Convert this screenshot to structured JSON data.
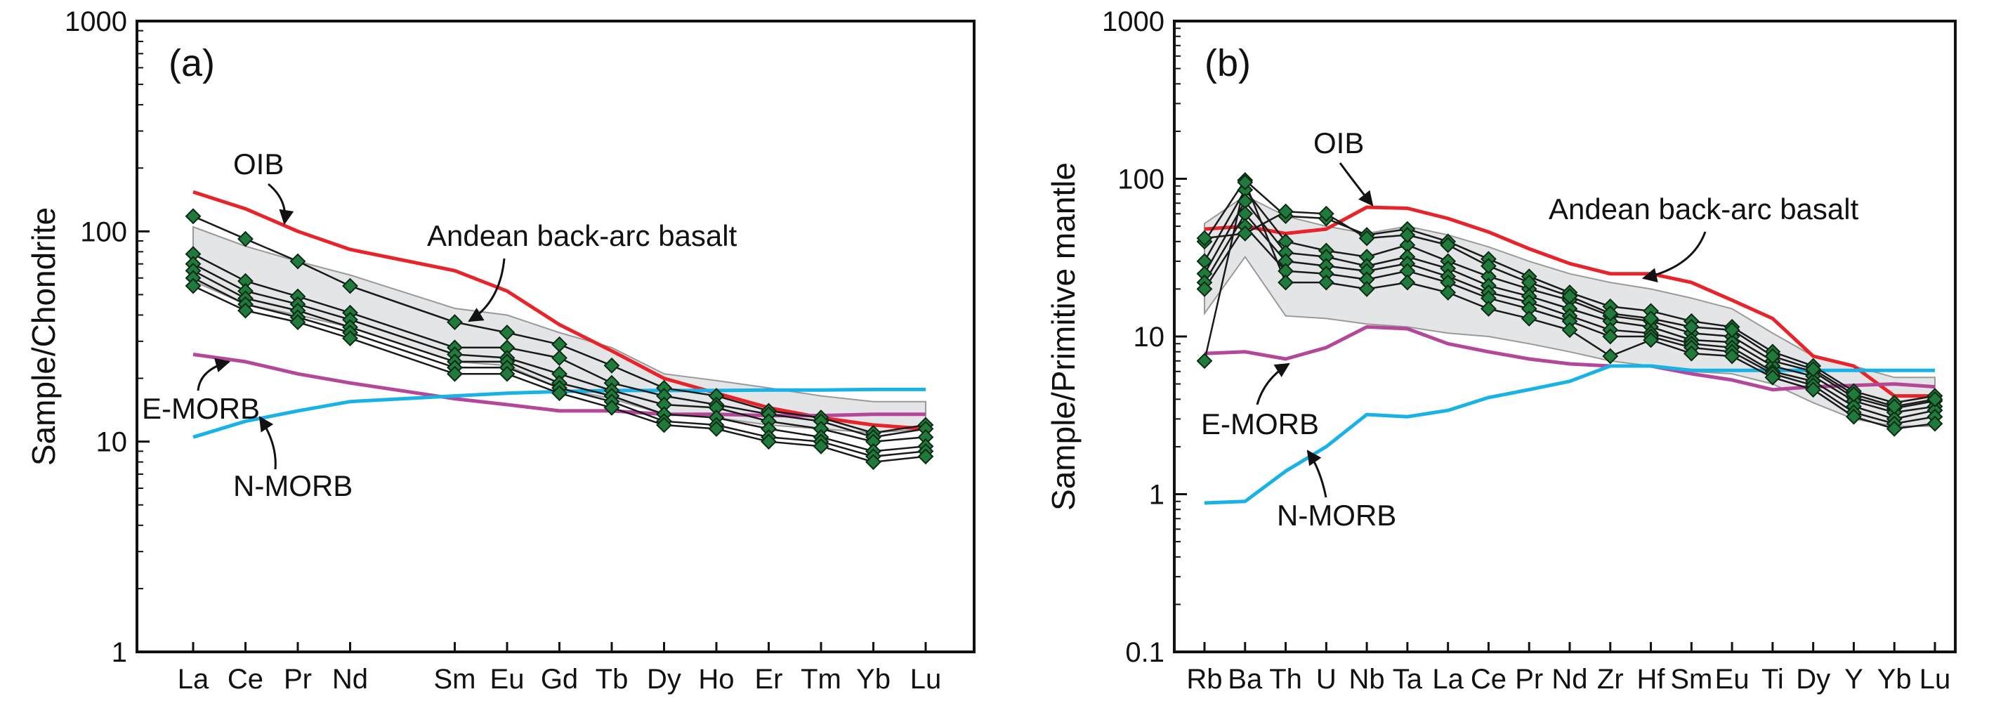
{
  "chart_data": [
    {
      "panel": "(a)",
      "type": "line",
      "ylabel": "Sample/Chondrite",
      "yscale": "log",
      "ylim": [
        1,
        1000
      ],
      "yticks": [
        "1",
        "10",
        "100",
        "1000"
      ],
      "categories": [
        "La",
        "Ce",
        "Pr",
        "Nd",
        "Sm",
        "Eu",
        "Gd",
        "Tb",
        "Dy",
        "Ho",
        "Er",
        "Tm",
        "Yb",
        "Lu"
      ],
      "positions": [
        0,
        1,
        2,
        3,
        5,
        6,
        7,
        8,
        9,
        10,
        11,
        12,
        13,
        14
      ],
      "envelope": {
        "name": "Andean back-arc basalt",
        "upper": [
          105,
          85,
          72,
          62,
          43,
          40,
          33,
          28,
          21,
          19.5,
          18,
          16.5,
          15.5,
          15.5
        ],
        "lower": [
          58,
          45,
          40,
          35,
          24,
          23,
          18,
          16,
          13.5,
          13,
          12,
          11.5,
          11,
          11.5
        ]
      },
      "reference": [
        {
          "name": "OIB",
          "color": "#e8242a",
          "values": [
            154,
            128,
            100,
            82,
            65,
            52,
            36,
            27,
            20,
            17,
            14.5,
            13,
            12,
            11.5
          ]
        },
        {
          "name": "E-MORB",
          "color": "#b4479a",
          "values": [
            26,
            24,
            21,
            19,
            16,
            15,
            14,
            14,
            13.5,
            13.5,
            13.3,
            13.3,
            13.5,
            13.5
          ]
        },
        {
          "name": "N-MORB",
          "color": "#19b2e6",
          "values": [
            10.5,
            12.5,
            14,
            15.5,
            16.5,
            17,
            17.3,
            17.5,
            17.5,
            17.5,
            17.6,
            17.6,
            17.7,
            17.7
          ]
        }
      ],
      "samples": [
        [
          118,
          92,
          72,
          55,
          37,
          33,
          29,
          23,
          18,
          16.5,
          14,
          13,
          11,
          12
        ],
        [
          78,
          58,
          49,
          41,
          28,
          28,
          25,
          19,
          16.5,
          15,
          13.5,
          12.5,
          10.5,
          11.5
        ],
        [
          70,
          52,
          45,
          38,
          26,
          25,
          21,
          17.5,
          15,
          14.5,
          12.5,
          11.5,
          10,
          10.5
        ],
        [
          65,
          48,
          42,
          35,
          24,
          24,
          19,
          16.5,
          13.5,
          13,
          11.5,
          10.5,
          9,
          9.5
        ],
        [
          60,
          45,
          39,
          33,
          22.5,
          22.5,
          18,
          15.5,
          12.5,
          12,
          10.5,
          10,
          8.5,
          9
        ],
        [
          55,
          42,
          37,
          31,
          21,
          21,
          17,
          14.5,
          12,
          11.5,
          10,
          9.5,
          8,
          8.5
        ]
      ],
      "annotations": [
        "OIB",
        "Andean back-arc basalt",
        "E-MORB",
        "N-MORB"
      ]
    },
    {
      "panel": "(b)",
      "type": "line",
      "ylabel": "Sample/Primitive mantle",
      "yscale": "log",
      "ylim": [
        0.1,
        1000
      ],
      "yticks": [
        "0.1",
        "1",
        "10",
        "100",
        "1000"
      ],
      "categories": [
        "Rb",
        "Ba",
        "Th",
        "U",
        "Nb",
        "Ta",
        "La",
        "Ce",
        "Pr",
        "Nd",
        "Zr",
        "Hf",
        "Sm",
        "Eu",
        "Ti",
        "Dy",
        "Y",
        "Yb",
        "Lu"
      ],
      "positions": [
        0,
        1,
        2,
        3,
        4,
        5,
        6,
        7,
        8,
        9,
        10,
        11,
        12,
        13,
        14,
        15,
        16,
        17,
        18
      ],
      "envelope": {
        "name": "Andean back-arc basalt",
        "upper": [
          52,
          78,
          58,
          50,
          45,
          50,
          44,
          37,
          30,
          25,
          22,
          20,
          17.5,
          15,
          10.5,
          7.5,
          6.5,
          5.5,
          5.5
        ],
        "lower": [
          14,
          32,
          13.5,
          13,
          12,
          11.5,
          10.5,
          10,
          9,
          8,
          7,
          6.5,
          6,
          5.8,
          5,
          3.8,
          3,
          2.7,
          2.7
        ]
      },
      "reference": [
        {
          "name": "OIB",
          "color": "#e8242a",
          "values": [
            48,
            50,
            45,
            48,
            66,
            65,
            56,
            46,
            36,
            29,
            25,
            25,
            22,
            17,
            13,
            7.5,
            6.5,
            4.2,
            4.2
          ]
        },
        {
          "name": "E-MORB",
          "color": "#b4479a",
          "values": [
            7.8,
            8,
            7.2,
            8.5,
            11.5,
            11.2,
            9,
            8,
            7.2,
            6.7,
            6.5,
            6.5,
            5.8,
            5.3,
            4.6,
            4.8,
            4.9,
            5,
            4.8
          ]
        },
        {
          "name": "N-MORB",
          "color": "#19b2e6",
          "values": [
            0.88,
            0.9,
            1.4,
            2,
            3.2,
            3.1,
            3.4,
            4.1,
            4.6,
            5.2,
            6.5,
            6.5,
            6.1,
            6.1,
            6.1,
            6.1,
            6.1,
            6.1,
            6.1
          ]
        }
      ],
      "samples": [
        [
          40,
          98,
          58,
          56,
          44,
          48,
          40,
          31,
          24,
          19,
          15.5,
          14.5,
          12.5,
          11.5,
          8,
          6.5,
          4.5,
          3.8,
          4.2
        ],
        [
          30,
          85,
          40,
          35,
          32,
          38,
          30,
          24,
          20,
          17,
          13.5,
          12.5,
          10.5,
          10,
          7,
          6,
          4.1,
          3.5,
          3.9
        ],
        [
          25,
          72,
          34,
          32,
          28,
          32,
          27,
          21,
          18,
          15,
          12.5,
          11.5,
          9.5,
          9.2,
          6.5,
          5.6,
          3.9,
          3.3,
          3.6
        ],
        [
          22,
          60,
          30,
          28,
          26,
          29,
          24,
          19,
          16.5,
          13.5,
          11,
          10.5,
          9,
          8.5,
          6,
          5.2,
          3.6,
          3,
          3.4
        ],
        [
          20,
          50,
          26,
          25,
          23,
          26,
          22,
          17.5,
          15,
          12.5,
          10,
          10,
          8.5,
          8,
          5.8,
          4.9,
          3.3,
          2.8,
          3.1
        ],
        [
          7,
          95,
          22,
          22,
          20,
          22,
          19,
          15,
          13,
          11,
          7.5,
          9.5,
          7.8,
          7.5,
          5.5,
          4.6,
          3.1,
          2.6,
          2.8
        ],
        [
          42,
          45,
          62,
          60,
          42,
          44,
          38,
          28,
          22,
          18,
          14,
          13,
          11.5,
          11,
          7.5,
          6.2,
          4.3,
          3.6,
          4
        ]
      ],
      "annotations": [
        "OIB",
        "Andean back-arc basalt",
        "E-MORB",
        "N-MORB"
      ]
    }
  ]
}
